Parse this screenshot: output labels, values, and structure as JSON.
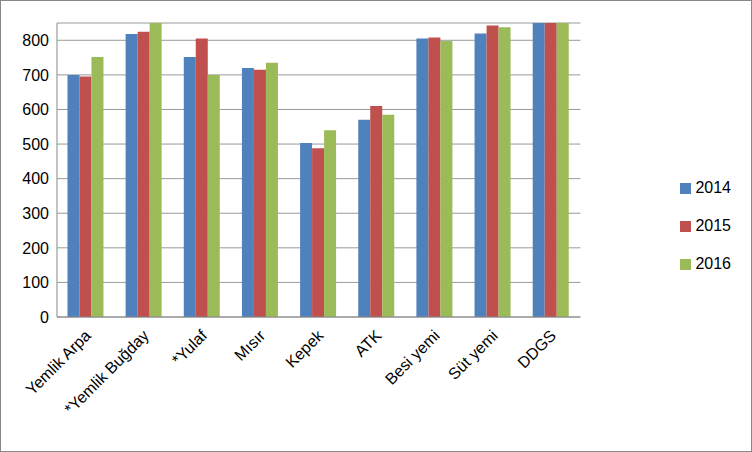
{
  "chart_data": {
    "type": "bar",
    "categories": [
      "Yemlik Arpa",
      "*Yemlik Buğday",
      "*Yulaf",
      "Mısır",
      "Kepek",
      "ATK",
      "Besi yemi",
      "Süt yemi",
      "DDGS"
    ],
    "series": [
      {
        "name": "2014",
        "color": "#4f81bd",
        "values": [
          700,
          818,
          752,
          720,
          503,
          570,
          805,
          820,
          850
        ]
      },
      {
        "name": "2015",
        "color": "#c0504d",
        "values": [
          695,
          825,
          805,
          715,
          488,
          610,
          808,
          843,
          850
        ]
      },
      {
        "name": "2016",
        "color": "#9bbb59",
        "values": [
          752,
          850,
          700,
          735,
          540,
          585,
          798,
          838,
          850
        ]
      }
    ],
    "ylim": [
      0,
      850
    ],
    "yticks": [
      0,
      100,
      200,
      300,
      400,
      500,
      600,
      700,
      800
    ],
    "grid": true,
    "legend": "right"
  }
}
